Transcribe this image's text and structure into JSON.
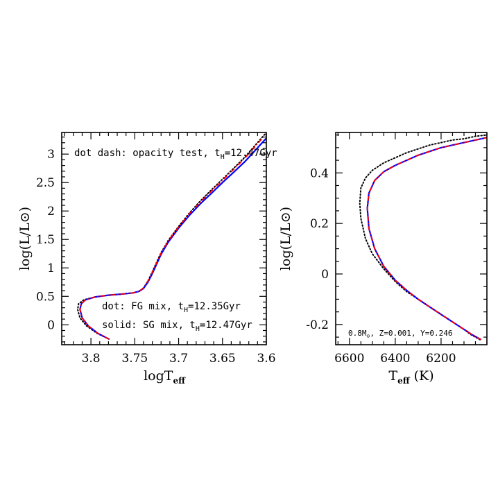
{
  "colors": {
    "fg": "#000000",
    "sg": "#0000ff",
    "opacity": "#ff0000"
  },
  "chart_data": [
    {
      "type": "line",
      "xlabel_main": "logT",
      "xlabel_sub": "eff",
      "ylabel": "log(L/L⊙)",
      "xlim": [
        3.8333,
        3.6
      ],
      "ylim": [
        -0.35,
        3.38
      ],
      "x_ticks": [
        3.8,
        3.75,
        3.7,
        3.65,
        3.6
      ],
      "x_tick_labels": [
        "3.8",
        "3.75",
        "3.7",
        "3.65",
        "3.6"
      ],
      "y_ticks": [
        0,
        0.5,
        1,
        1.5,
        2,
        2.5,
        3
      ],
      "y_tick_labels": [
        "0",
        "0.5",
        "1",
        "1.5",
        "2",
        "2.5",
        "3"
      ],
      "annotations": [
        {
          "text": "dot dash: opacity test, t",
          "sub": "H",
          "tail": "=12.47Gyr",
          "color": "#ff0000"
        },
        {
          "text": "dot: FG mix,  t",
          "sub": "H",
          "tail": "=12.35Gyr",
          "color": "#000000"
        },
        {
          "text": "solid: SG mix, t",
          "sub": "H",
          "tail": "=12.47Gyr",
          "color": "#0000ff"
        }
      ],
      "series": [
        {
          "style": "dotted",
          "color": "#000000",
          "x": [
            3.7795,
            3.793,
            3.805,
            3.8125,
            3.8152,
            3.814,
            3.808,
            3.795,
            3.78,
            3.765,
            3.752,
            3.745,
            3.74,
            3.735,
            3.73,
            3.725,
            3.72,
            3.712,
            3.7,
            3.688,
            3.675,
            3.662,
            3.65,
            3.638,
            3.625,
            3.613,
            3.6
          ],
          "y": [
            -0.25,
            -0.15,
            -0.02,
            0.12,
            0.27,
            0.37,
            0.44,
            0.49,
            0.52,
            0.54,
            0.56,
            0.59,
            0.65,
            0.77,
            0.93,
            1.1,
            1.27,
            1.48,
            1.73,
            1.96,
            2.18,
            2.38,
            2.56,
            2.74,
            2.94,
            3.15,
            3.38
          ]
        },
        {
          "style": "solid",
          "color": "#0000ff",
          "x": [
            3.7795,
            3.792,
            3.803,
            3.81,
            3.8125,
            3.811,
            3.806,
            3.795,
            3.78,
            3.765,
            3.752,
            3.745,
            3.74,
            3.735,
            3.73,
            3.725,
            3.72,
            3.712,
            3.7,
            3.688,
            3.675,
            3.662,
            3.65,
            3.638,
            3.625,
            3.613,
            3.6
          ],
          "y": [
            -0.25,
            -0.15,
            -0.02,
            0.12,
            0.27,
            0.37,
            0.44,
            0.49,
            0.52,
            0.54,
            0.56,
            0.59,
            0.64,
            0.75,
            0.9,
            1.07,
            1.24,
            1.45,
            1.7,
            1.92,
            2.13,
            2.32,
            2.5,
            2.67,
            2.86,
            3.06,
            3.28
          ]
        },
        {
          "style": "dashdot",
          "color": "#ff0000",
          "x": [
            3.7795,
            3.792,
            3.803,
            3.81,
            3.8125,
            3.811,
            3.806,
            3.795,
            3.78,
            3.765,
            3.752,
            3.745,
            3.74,
            3.735,
            3.73,
            3.725,
            3.72,
            3.712,
            3.7,
            3.688,
            3.675,
            3.662,
            3.65,
            3.638,
            3.625,
            3.613,
            3.6
          ],
          "y": [
            -0.25,
            -0.15,
            -0.02,
            0.12,
            0.27,
            0.37,
            0.44,
            0.49,
            0.52,
            0.54,
            0.56,
            0.59,
            0.65,
            0.77,
            0.92,
            1.09,
            1.26,
            1.47,
            1.72,
            1.95,
            2.16,
            2.36,
            2.54,
            2.72,
            2.92,
            3.13,
            3.36
          ]
        }
      ]
    },
    {
      "type": "line",
      "xlabel_main": "T",
      "xlabel_sub": "eff",
      "xlabel_tail": " (K)",
      "ylabel": "log(L/L⊙)",
      "xlim": [
        6660,
        6000
      ],
      "ylim": [
        -0.28,
        0.56
      ],
      "x_ticks": [
        6600,
        6400,
        6200
      ],
      "x_tick_labels": [
        "6600",
        "6400",
        "6200"
      ],
      "y_ticks": [
        -0.2,
        0,
        0.2,
        0.4
      ],
      "y_tick_labels": [
        "-0.2",
        "0",
        "0.2",
        "0.4"
      ],
      "annotation": {
        "text": "0.8M",
        "sub": "⊙",
        "tail": ", Z=0.001, Y=0.246"
      },
      "series": [
        {
          "style": "dotted",
          "color": "#000000",
          "x": [
            6030,
            6050,
            6070,
            6100,
            6150,
            6200,
            6250,
            6300,
            6350,
            6400,
            6450,
            6500,
            6530,
            6550,
            6555,
            6550,
            6530,
            6500,
            6450,
            6400,
            6350,
            6300,
            6250,
            6200,
            6150,
            6100,
            6050,
            6000
          ],
          "y": [
            -0.26,
            -0.25,
            -0.24,
            -0.22,
            -0.19,
            -0.16,
            -0.13,
            -0.1,
            -0.07,
            -0.03,
            0.02,
            0.08,
            0.14,
            0.22,
            0.28,
            0.34,
            0.38,
            0.41,
            0.44,
            0.46,
            0.48,
            0.495,
            0.51,
            0.52,
            0.53,
            0.535,
            0.545,
            0.55
          ]
        },
        {
          "style": "solid",
          "color": "#0000ff",
          "x": [
            6025,
            6045,
            6065,
            6090,
            6150,
            6200,
            6250,
            6300,
            6350,
            6400,
            6450,
            6490,
            6515,
            6522,
            6515,
            6490,
            6450,
            6400,
            6350,
            6300,
            6250,
            6200,
            6150,
            6100,
            6050,
            6000
          ],
          "y": [
            -0.26,
            -0.25,
            -0.24,
            -0.225,
            -0.19,
            -0.16,
            -0.13,
            -0.1,
            -0.065,
            -0.025,
            0.03,
            0.1,
            0.18,
            0.26,
            0.32,
            0.37,
            0.405,
            0.43,
            0.45,
            0.47,
            0.485,
            0.5,
            0.51,
            0.52,
            0.53,
            0.54
          ]
        },
        {
          "style": "dashdot",
          "color": "#ff0000",
          "x": [
            6025,
            6045,
            6065,
            6090,
            6150,
            6200,
            6250,
            6300,
            6350,
            6400,
            6450,
            6490,
            6515,
            6522,
            6515,
            6490,
            6450,
            6400,
            6350,
            6300,
            6250,
            6200,
            6150,
            6100,
            6050,
            6000
          ],
          "y": [
            -0.26,
            -0.25,
            -0.24,
            -0.225,
            -0.19,
            -0.16,
            -0.13,
            -0.1,
            -0.065,
            -0.025,
            0.03,
            0.1,
            0.18,
            0.26,
            0.32,
            0.37,
            0.405,
            0.43,
            0.45,
            0.47,
            0.485,
            0.5,
            0.51,
            0.52,
            0.53,
            0.54
          ]
        }
      ]
    }
  ]
}
